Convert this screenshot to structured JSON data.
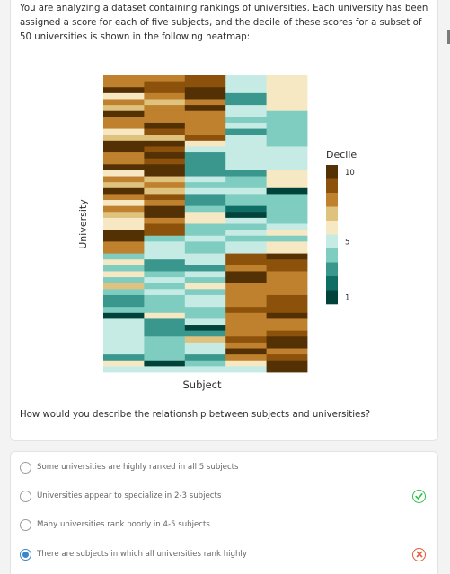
{
  "question": {
    "text": "You are analyzing a dataset containing rankings of universities. Each university has been assigned a score for each of five subjects, and the decile of these scores for a subset of 50 universities is shown in the following heatmap:",
    "prompt": "How would you describe the relationship between subjects and universities?"
  },
  "chart_data": {
    "type": "heatmap",
    "xlabel": "Subject",
    "ylabel": "University",
    "legend_title": "Decile",
    "legend_ticks": [
      "10",
      "5",
      "1"
    ],
    "legend_placement": "right",
    "colorscale": [
      "#01423a",
      "#0e6e66",
      "#3a978e",
      "#7fcdc1",
      "#c6ebe5",
      "#f6e8c3",
      "#dfc27d",
      "#bf812d",
      "#8c510a",
      "#543005"
    ],
    "deciles": [
      [
        8,
        8,
        9,
        5,
        6
      ],
      [
        8,
        9,
        9,
        5,
        6
      ],
      [
        10,
        9,
        10,
        5,
        6
      ],
      [
        6,
        8,
        10,
        3,
        6
      ],
      [
        8,
        7,
        8,
        3,
        6
      ],
      [
        7,
        8,
        10,
        5,
        6
      ],
      [
        10,
        8,
        8,
        5,
        4
      ],
      [
        8,
        8,
        8,
        4,
        4
      ],
      [
        8,
        10,
        8,
        5,
        4
      ],
      [
        6,
        9,
        8,
        3,
        4
      ],
      [
        7,
        7,
        9,
        5,
        4
      ],
      [
        10,
        10,
        6,
        5,
        4
      ],
      [
        10,
        9,
        5,
        5,
        5
      ],
      [
        8,
        10,
        3,
        5,
        5
      ],
      [
        8,
        9,
        3,
        5,
        5
      ],
      [
        10,
        10,
        3,
        5,
        5
      ],
      [
        6,
        10,
        3,
        3,
        6
      ],
      [
        8,
        7,
        5,
        4,
        6
      ],
      [
        7,
        8,
        4,
        4,
        6
      ],
      [
        10,
        7,
        5,
        5,
        1
      ],
      [
        8,
        9,
        3,
        4,
        4
      ],
      [
        6,
        8,
        3,
        4,
        4
      ],
      [
        8,
        10,
        4,
        2,
        4
      ],
      [
        7,
        10,
        6,
        1,
        4
      ],
      [
        6,
        8,
        6,
        5,
        4
      ],
      [
        6,
        9,
        4,
        4,
        5
      ],
      [
        10,
        9,
        4,
        5,
        6
      ],
      [
        10,
        4,
        5,
        4,
        4
      ],
      [
        8,
        5,
        4,
        5,
        6
      ],
      [
        8,
        5,
        4,
        5,
        6
      ],
      [
        4,
        5,
        5,
        9,
        10
      ],
      [
        6,
        3,
        5,
        9,
        9
      ],
      [
        4,
        3,
        3,
        8,
        9
      ],
      [
        6,
        4,
        5,
        10,
        8
      ],
      [
        4,
        5,
        4,
        10,
        8
      ],
      [
        7,
        4,
        6,
        8,
        8
      ],
      [
        4,
        5,
        4,
        8,
        8
      ],
      [
        3,
        4,
        5,
        8,
        9
      ],
      [
        3,
        4,
        5,
        8,
        9
      ],
      [
        4,
        4,
        4,
        9,
        9
      ],
      [
        1,
        6,
        4,
        8,
        10
      ],
      [
        5,
        3,
        5,
        8,
        8
      ],
      [
        5,
        3,
        1,
        8,
        8
      ],
      [
        5,
        3,
        3,
        8,
        9
      ],
      [
        5,
        4,
        7,
        9,
        10
      ],
      [
        5,
        4,
        5,
        8,
        10
      ],
      [
        5,
        4,
        5,
        10,
        8
      ],
      [
        3,
        4,
        3,
        8,
        9
      ],
      [
        6,
        1,
        4,
        6,
        10
      ],
      [
        5,
        5,
        5,
        5,
        10
      ]
    ]
  },
  "options": [
    {
      "label": "Some universities are highly ranked in all 5 subjects",
      "selected": false,
      "mark": ""
    },
    {
      "label": "Universities appear to specialize in 2-3 subjects",
      "selected": false,
      "mark": "correct"
    },
    {
      "label": "Many universities rank poorly in 4-5 subjects",
      "selected": false,
      "mark": ""
    },
    {
      "label": "There are subjects in which all universities rank highly",
      "selected": true,
      "mark": "wrong"
    }
  ],
  "icons": {
    "correct": "check-circle-icon",
    "wrong": "x-circle-icon"
  }
}
